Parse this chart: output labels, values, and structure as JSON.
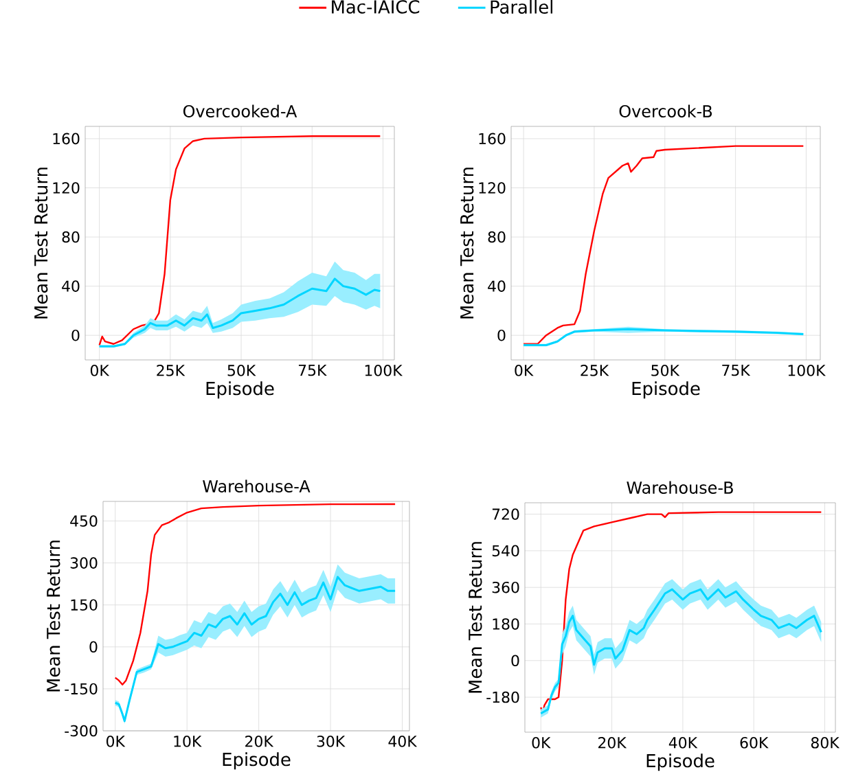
{
  "chart_data": [
    {
      "type": "line",
      "title": "Overcooked-A",
      "xlabel": "Episode",
      "ylabel": "Mean Test Return",
      "xlim": [
        -5000,
        104000
      ],
      "ylim": [
        -20,
        170
      ],
      "xticks": [
        {
          "value": 0,
          "label": "0K"
        },
        {
          "value": 25000,
          "label": "25K"
        },
        {
          "value": 50000,
          "label": "50K"
        },
        {
          "value": 75000,
          "label": "75K"
        },
        {
          "value": 100000,
          "label": "100K"
        }
      ],
      "yticks": [
        0,
        40,
        80,
        120,
        160
      ],
      "grid": true,
      "legend": "top",
      "series": [
        {
          "name": "Mac-IAICC",
          "color": "#ff0000",
          "x": [
            0,
            1000,
            2000,
            5000,
            8000,
            12000,
            15000,
            19000,
            21000,
            23000,
            25000,
            27000,
            30000,
            33000,
            37000,
            50000,
            75000,
            99000
          ],
          "values": [
            -8,
            -1,
            -5,
            -7,
            -4,
            5,
            8,
            10,
            18,
            50,
            110,
            135,
            152,
            158,
            160,
            161,
            162,
            162
          ]
        },
        {
          "name": "Parallel",
          "color": "#00d5ff",
          "x": [
            0,
            5000,
            9000,
            12000,
            16000,
            18000,
            20000,
            24000,
            27000,
            30000,
            33000,
            36000,
            38000,
            40000,
            43000,
            47000,
            50000,
            55000,
            60000,
            65000,
            70000,
            75000,
            80000,
            83000,
            86000,
            90000,
            94000,
            97000,
            99000
          ],
          "values": [
            -9,
            -9,
            -7,
            0,
            5,
            10,
            8,
            8,
            12,
            8,
            14,
            12,
            17,
            6,
            8,
            12,
            18,
            20,
            22,
            25,
            32,
            38,
            36,
            46,
            40,
            38,
            33,
            37,
            36
          ],
          "lower": [
            -10,
            -10,
            -8,
            -2,
            2,
            6,
            4,
            4,
            7,
            3,
            8,
            6,
            10,
            2,
            3,
            6,
            11,
            12,
            14,
            15,
            19,
            25,
            24,
            32,
            27,
            25,
            21,
            24,
            22
          ],
          "upper": [
            -8,
            -8,
            -6,
            2,
            8,
            14,
            12,
            12,
            17,
            13,
            20,
            18,
            24,
            10,
            13,
            18,
            25,
            28,
            30,
            35,
            44,
            51,
            48,
            60,
            53,
            51,
            45,
            50,
            50
          ]
        }
      ]
    },
    {
      "type": "line",
      "title": "Overcook-B",
      "xlabel": "Episode",
      "ylabel": "Mean Test Return",
      "xlim": [
        -4400,
        105000
      ],
      "ylim": [
        -20,
        170
      ],
      "xticks": [
        {
          "value": 0,
          "label": "0K"
        },
        {
          "value": 25000,
          "label": "25K"
        },
        {
          "value": 50000,
          "label": "50K"
        },
        {
          "value": 75000,
          "label": "75K"
        },
        {
          "value": 100000,
          "label": "100K"
        }
      ],
      "yticks": [
        0,
        40,
        80,
        120,
        160
      ],
      "grid": true,
      "series": [
        {
          "color": "#ff0000",
          "x": [
            0,
            5000,
            8000,
            12000,
            14000,
            18000,
            20000,
            22000,
            25000,
            28000,
            30000,
            35000,
            37000,
            38000,
            40000,
            42000,
            46000,
            47000,
            50000,
            75000,
            99000
          ],
          "values": [
            -7,
            -7,
            0,
            6,
            8,
            9,
            20,
            50,
            85,
            115,
            128,
            138,
            140,
            133,
            138,
            144,
            145,
            150,
            151,
            154,
            154
          ]
        },
        {
          "color": "#00d5ff",
          "x": [
            0,
            8000,
            12000,
            15000,
            18000,
            25000,
            37000,
            50000,
            75000,
            90000,
            99000
          ],
          "values": [
            -8,
            -8,
            -5,
            0,
            3,
            4,
            5,
            4,
            3,
            2,
            1
          ],
          "lower": [
            -9,
            -9,
            -6,
            -1,
            2,
            3,
            2,
            3,
            2,
            1,
            0
          ],
          "upper": [
            -7,
            -7,
            -4,
            1,
            4,
            5,
            7,
            5,
            4,
            3,
            2
          ]
        }
      ]
    },
    {
      "type": "line",
      "title": "Warehouse-A",
      "xlabel": "Episode",
      "ylabel": "Mean Test Return",
      "xlim": [
        -1700,
        41000
      ],
      "ylim": [
        -300,
        520
      ],
      "xticks": [
        {
          "value": 0,
          "label": "0K"
        },
        {
          "value": 10000,
          "label": "10K"
        },
        {
          "value": 20000,
          "label": "20K"
        },
        {
          "value": 30000,
          "label": "30K"
        },
        {
          "value": 40000,
          "label": "40K"
        }
      ],
      "yticks": [
        -300,
        -150,
        0,
        150,
        300,
        450
      ],
      "grid": true,
      "series": [
        {
          "color": "#ff0000",
          "x": [
            0,
            500,
            1000,
            1500,
            2500,
            3500,
            4500,
            5000,
            5500,
            6500,
            7500,
            8500,
            10000,
            12000,
            15000,
            20000,
            30000,
            39000
          ],
          "values": [
            -110,
            -120,
            -135,
            -120,
            -50,
            50,
            200,
            330,
            400,
            435,
            445,
            460,
            480,
            495,
            500,
            505,
            510,
            510
          ]
        },
        {
          "color": "#00d5ff",
          "x": [
            0,
            500,
            1000,
            1300,
            2000,
            3000,
            4000,
            5000,
            6000,
            7000,
            8000,
            9000,
            10000,
            11000,
            12000,
            13000,
            14000,
            15000,
            16000,
            17000,
            18000,
            19000,
            20000,
            21000,
            22000,
            23000,
            24000,
            25000,
            26000,
            27000,
            28000,
            29000,
            30000,
            31000,
            32000,
            34000,
            36000,
            37000,
            38000,
            39000
          ],
          "values": [
            -200,
            -205,
            -240,
            -265,
            -190,
            -90,
            -80,
            -70,
            10,
            -5,
            0,
            10,
            20,
            50,
            40,
            80,
            70,
            100,
            110,
            80,
            120,
            80,
            100,
            110,
            160,
            190,
            150,
            195,
            150,
            165,
            175,
            230,
            170,
            250,
            220,
            200,
            210,
            215,
            200,
            200
          ],
          "lower": [
            -210,
            -215,
            -250,
            -275,
            -200,
            -100,
            -92,
            -80,
            -20,
            -35,
            -30,
            -20,
            -10,
            5,
            -5,
            35,
            25,
            55,
            65,
            35,
            75,
            35,
            55,
            65,
            115,
            145,
            105,
            150,
            105,
            120,
            130,
            185,
            125,
            205,
            175,
            155,
            165,
            170,
            155,
            155
          ],
          "upper": [
            -190,
            -195,
            -230,
            -255,
            -180,
            -80,
            -70,
            -60,
            40,
            25,
            30,
            42,
            50,
            95,
            85,
            125,
            115,
            145,
            155,
            125,
            165,
            125,
            145,
            155,
            205,
            235,
            195,
            240,
            195,
            210,
            220,
            275,
            215,
            295,
            265,
            245,
            255,
            260,
            245,
            245
          ]
        }
      ]
    },
    {
      "type": "line",
      "title": "Warehouse-B",
      "xlabel": "Episode",
      "ylabel": "Mean Test Return",
      "xlim": [
        -4500,
        83000
      ],
      "ylim": [
        -352,
        776
      ],
      "xticks": [
        {
          "value": 0,
          "label": "0K"
        },
        {
          "value": 20000,
          "label": "20K"
        },
        {
          "value": 40000,
          "label": "40K"
        },
        {
          "value": 60000,
          "label": "60K"
        },
        {
          "value": 80000,
          "label": "80K"
        }
      ],
      "yticks": [
        -180,
        0,
        180,
        360,
        540,
        720
      ],
      "grid": true,
      "series": [
        {
          "color": "#ff0000",
          "x": [
            0,
            500,
            1000,
            2000,
            4000,
            5000,
            6000,
            7000,
            8000,
            9000,
            10000,
            12000,
            15000,
            20000,
            25000,
            30000,
            34000,
            35000,
            36000,
            50000,
            79000
          ],
          "values": [
            -230,
            -260,
            -220,
            -190,
            -190,
            -180,
            0,
            300,
            450,
            520,
            560,
            640,
            660,
            680,
            700,
            720,
            720,
            705,
            725,
            730,
            730
          ]
        },
        {
          "color": "#00d5ff",
          "x": [
            0,
            2000,
            3000,
            4000,
            5000,
            6000,
            7000,
            8000,
            9000,
            10000,
            12000,
            14000,
            15000,
            16000,
            18000,
            20000,
            21000,
            23000,
            25000,
            27000,
            29000,
            30000,
            32000,
            35000,
            37000,
            40000,
            42000,
            45000,
            47000,
            50000,
            52000,
            55000,
            57000,
            60000,
            62000,
            65000,
            67000,
            70000,
            72000,
            75000,
            77000,
            79000
          ],
          "values": [
            -260,
            -240,
            -170,
            -130,
            -110,
            80,
            120,
            190,
            220,
            150,
            110,
            70,
            -20,
            40,
            60,
            60,
            10,
            50,
            150,
            130,
            160,
            200,
            250,
            330,
            350,
            300,
            330,
            350,
            300,
            350,
            310,
            340,
            300,
            250,
            220,
            200,
            160,
            180,
            160,
            200,
            220,
            140
          ],
          "lower": [
            -280,
            -260,
            -190,
            -150,
            -130,
            30,
            70,
            140,
            170,
            100,
            60,
            20,
            -70,
            -10,
            10,
            10,
            -40,
            0,
            100,
            80,
            110,
            150,
            200,
            280,
            300,
            250,
            280,
            300,
            250,
            300,
            260,
            290,
            250,
            200,
            170,
            150,
            110,
            130,
            110,
            150,
            170,
            90
          ],
          "upper": [
            -240,
            -220,
            -150,
            -110,
            -90,
            130,
            170,
            240,
            270,
            200,
            160,
            120,
            30,
            90,
            110,
            110,
            60,
            100,
            200,
            180,
            210,
            250,
            300,
            380,
            400,
            350,
            380,
            400,
            350,
            400,
            360,
            390,
            350,
            300,
            270,
            250,
            210,
            230,
            210,
            250,
            270,
            190
          ]
        }
      ]
    }
  ]
}
